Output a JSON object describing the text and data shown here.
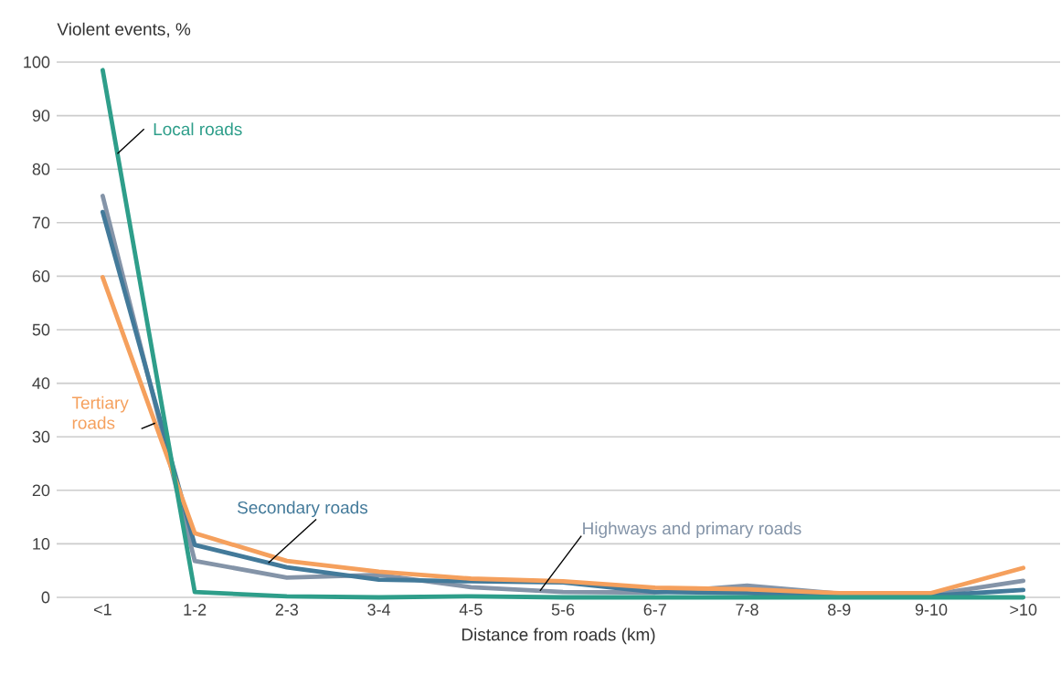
{
  "chart_data": {
    "type": "line",
    "xlabel": "Distance from roads (km)",
    "ylabel": "Violent events, %",
    "categories": [
      "<1",
      "1-2",
      "2-3",
      "3-4",
      "4-5",
      "5-6",
      "6-7",
      "7-8",
      "8-9",
      "9-10",
      ">10"
    ],
    "series": [
      {
        "name": "Highways and primary roads",
        "color": "#8494a8",
        "values": [
          75,
          6.8,
          3.7,
          4.2,
          1.9,
          1,
          0.9,
          2.2,
          0.7,
          0.5,
          3.1
        ]
      },
      {
        "name": "Secondary roads",
        "color": "#437a9a",
        "values": [
          72,
          9.8,
          5.6,
          3.3,
          3,
          2.8,
          1,
          0.8,
          0.3,
          0.3,
          1.4
        ]
      },
      {
        "name": "Tertiary roads",
        "color": "#f5a05d",
        "values": [
          59.8,
          12,
          6.8,
          4.8,
          3.5,
          3,
          1.8,
          1.5,
          0.8,
          0.8,
          5.5
        ]
      },
      {
        "name": "Local roads",
        "color": "#2e9e8a",
        "values": [
          98.5,
          1,
          0.2,
          0,
          0.2,
          0,
          0,
          0,
          0,
          0,
          0
        ]
      }
    ],
    "ylim": [
      0,
      100
    ],
    "yticks": [
      0,
      10,
      20,
      30,
      40,
      50,
      60,
      70,
      80,
      90,
      100
    ],
    "grid": "y",
    "legend": false,
    "marker": "none",
    "line_style": "solid"
  }
}
